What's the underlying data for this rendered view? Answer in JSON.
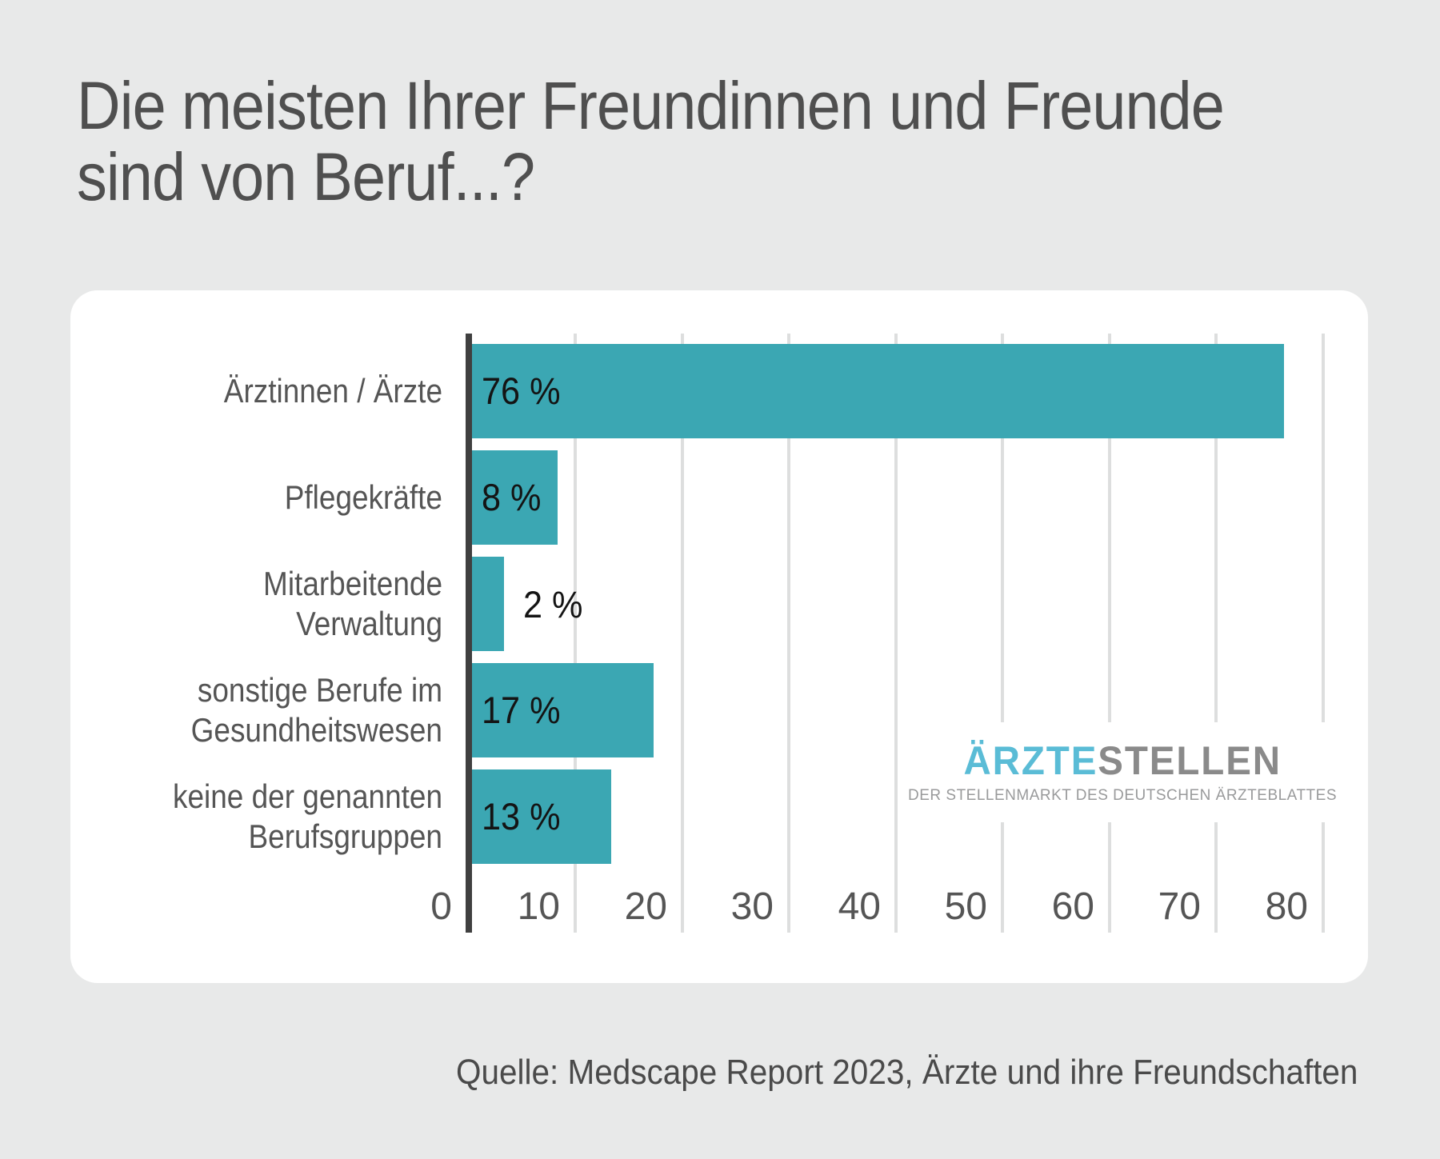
{
  "title_lines": {
    "line1": "Die meisten Ihrer Freundinnen und Freunde",
    "line2": "sind von Beruf...?"
  },
  "chart_data": {
    "type": "bar",
    "orientation": "horizontal",
    "title": "Die meisten Ihrer Freundinnen und Freunde sind von Beruf...?",
    "categories": [
      "Ärztinnen / Ärzte",
      "Pflegekräfte",
      "Mitarbeitende Verwaltung",
      "sonstige Berufe im Gesundheitswesen",
      "keine der genannten Berufsgruppen"
    ],
    "values": [
      76,
      8,
      2,
      17,
      13
    ],
    "value_labels": [
      "76 %",
      "8 %",
      "2 %",
      "17 %",
      "13 %"
    ],
    "xlim": [
      0,
      80
    ],
    "ticks": [
      "0",
      "10",
      "20",
      "30",
      "40",
      "50",
      "60",
      "70",
      "80"
    ],
    "grid": true,
    "legend": "none",
    "bar_color": "#3ba7b3",
    "axis_line_color": "#404040",
    "gridline_color": "#dddede"
  },
  "category_display": {
    "row1": {
      "l1": "Ärztinnen / Ärzte"
    },
    "row2": {
      "l1": "Pflegekräfte"
    },
    "row3": {
      "l1": "Mitarbeitende Verwaltung"
    },
    "row4": {
      "l1": "sonstige Berufe im",
      "l2": "Gesundheitswesen"
    },
    "row5": {
      "l1": "keine der genannten",
      "l2": "Berufsgruppen"
    }
  },
  "logo": {
    "part1": "ÄRZTE",
    "part2": "STELLEN",
    "subtitle": "DER STELLENMARKT DES DEUTSCHEN ÄRZTEBLATTES",
    "part1_color": "#5abcd6",
    "part2_color": "#8a8a8a"
  },
  "source": "Quelle: Medscape Report 2023, Ärzte und ihre Freundschaften",
  "colors": {
    "page_background": "#e8e9e9",
    "card_background": "#ffffff",
    "title_text": "#4f4f4f",
    "label_text": "#555555",
    "value_text": "#141414"
  }
}
